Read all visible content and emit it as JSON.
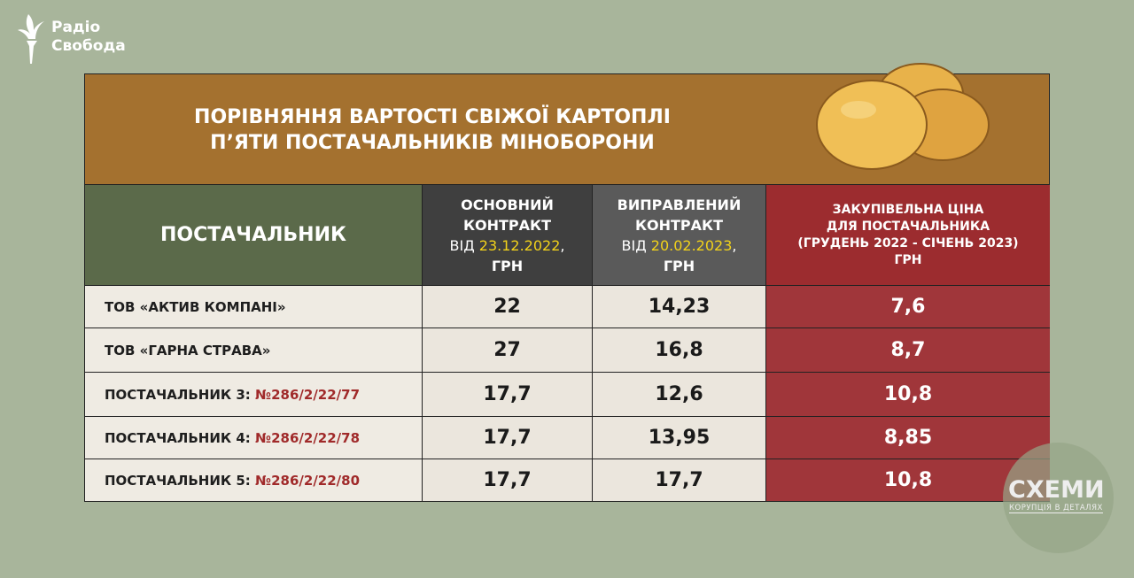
{
  "logo": {
    "line1": "Радіо",
    "line2": "Свобода"
  },
  "title": {
    "line1": "ПОРІВНЯННЯ ВАРТОСТІ СВІЖОЇ КАРТОПЛІ",
    "line2": "П’ЯТИ ПОСТАЧАЛЬНИКІВ МІНОБОРОНИ"
  },
  "headers": {
    "supplier": "ПОСТАЧАЛЬНИК",
    "main": {
      "l1": "ОСНОВНИЙ",
      "l2": "КОНТРАКТ",
      "prefix": "ВІД ",
      "date": "23.12.2022",
      "suffix": ",",
      "unit": "ГРН"
    },
    "fixed": {
      "l1": "ВИПРАВЛЕНИЙ",
      "l2": "КОНТРАКТ",
      "prefix": "ВІД ",
      "date": "20.02.2023",
      "suffix": ",",
      "unit": "ГРН"
    },
    "purchase": {
      "l1": "ЗАКУПІВЕЛЬНА ЦІНА",
      "l2": "ДЛЯ ПОСТАЧАЛЬНИКА",
      "l3": "(ГРУДЕНЬ 2022 - СІЧЕНЬ 2023)",
      "l4": "ГРН"
    }
  },
  "rows": [
    {
      "name": "ТОВ «АКТИВ КОМПАНІ»",
      "contract": "",
      "main": "22",
      "fixed": "14,23",
      "purchase": "7,6"
    },
    {
      "name": "ТОВ «ГАРНА СТРАВА»",
      "contract": "",
      "main": "27",
      "fixed": "16,8",
      "purchase": "8,7"
    },
    {
      "name": "ПОСТАЧАЛЬНИК 3: ",
      "contract": "№286/2/22/77",
      "main": "17,7",
      "fixed": "12,6",
      "purchase": "10,8"
    },
    {
      "name": "ПОСТАЧАЛЬНИК 4: ",
      "contract": "№286/2/22/78",
      "main": "17,7",
      "fixed": "13,95",
      "purchase": "8,85"
    },
    {
      "name": "ПОСТАЧАЛЬНИК 5: ",
      "contract": "№286/2/22/80",
      "main": "17,7",
      "fixed": "17,7",
      "purchase": "10,8"
    }
  ],
  "watermark": {
    "title": "СХЕМИ",
    "subtitle": "КОРУПЦІЯ В ДЕТАЛЯХ"
  },
  "colors": {
    "background": "#a8b59b",
    "title_band": "#a4712f",
    "supplier_header": "#5b6a4a",
    "purchase_column": "#a0363a",
    "date_highlight": "#f2d21a",
    "contract_number": "#a02a2a"
  }
}
